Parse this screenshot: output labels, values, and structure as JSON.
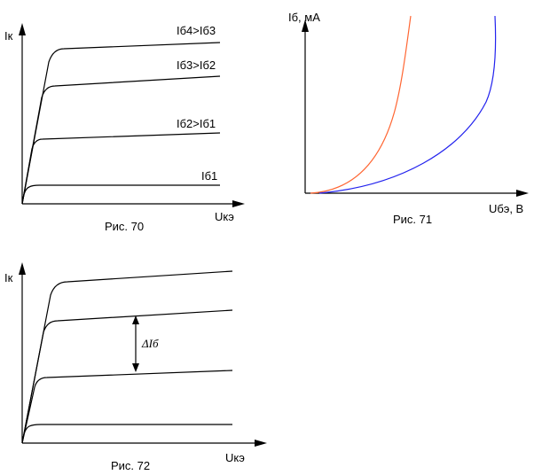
{
  "fig70": {
    "caption": "Рис. 70",
    "y_axis_label": "Iк",
    "x_axis_label": "Uкэ",
    "curve_labels": [
      "Iб4>Iб3",
      "Iб3>Iб2",
      "Iб2>Iб1",
      "Iб1"
    ]
  },
  "fig71": {
    "caption": "Рис. 71",
    "y_axis_label": "Iб, мА",
    "x_axis_label": "Uбэ, В",
    "colors": {
      "curve_left": "#ff6633",
      "curve_right": "#2222ee"
    }
  },
  "fig72": {
    "caption": "Рис. 72",
    "y_axis_label": "Iк",
    "x_axis_label": "Uкэ",
    "delta_label": "ΔIб"
  }
}
